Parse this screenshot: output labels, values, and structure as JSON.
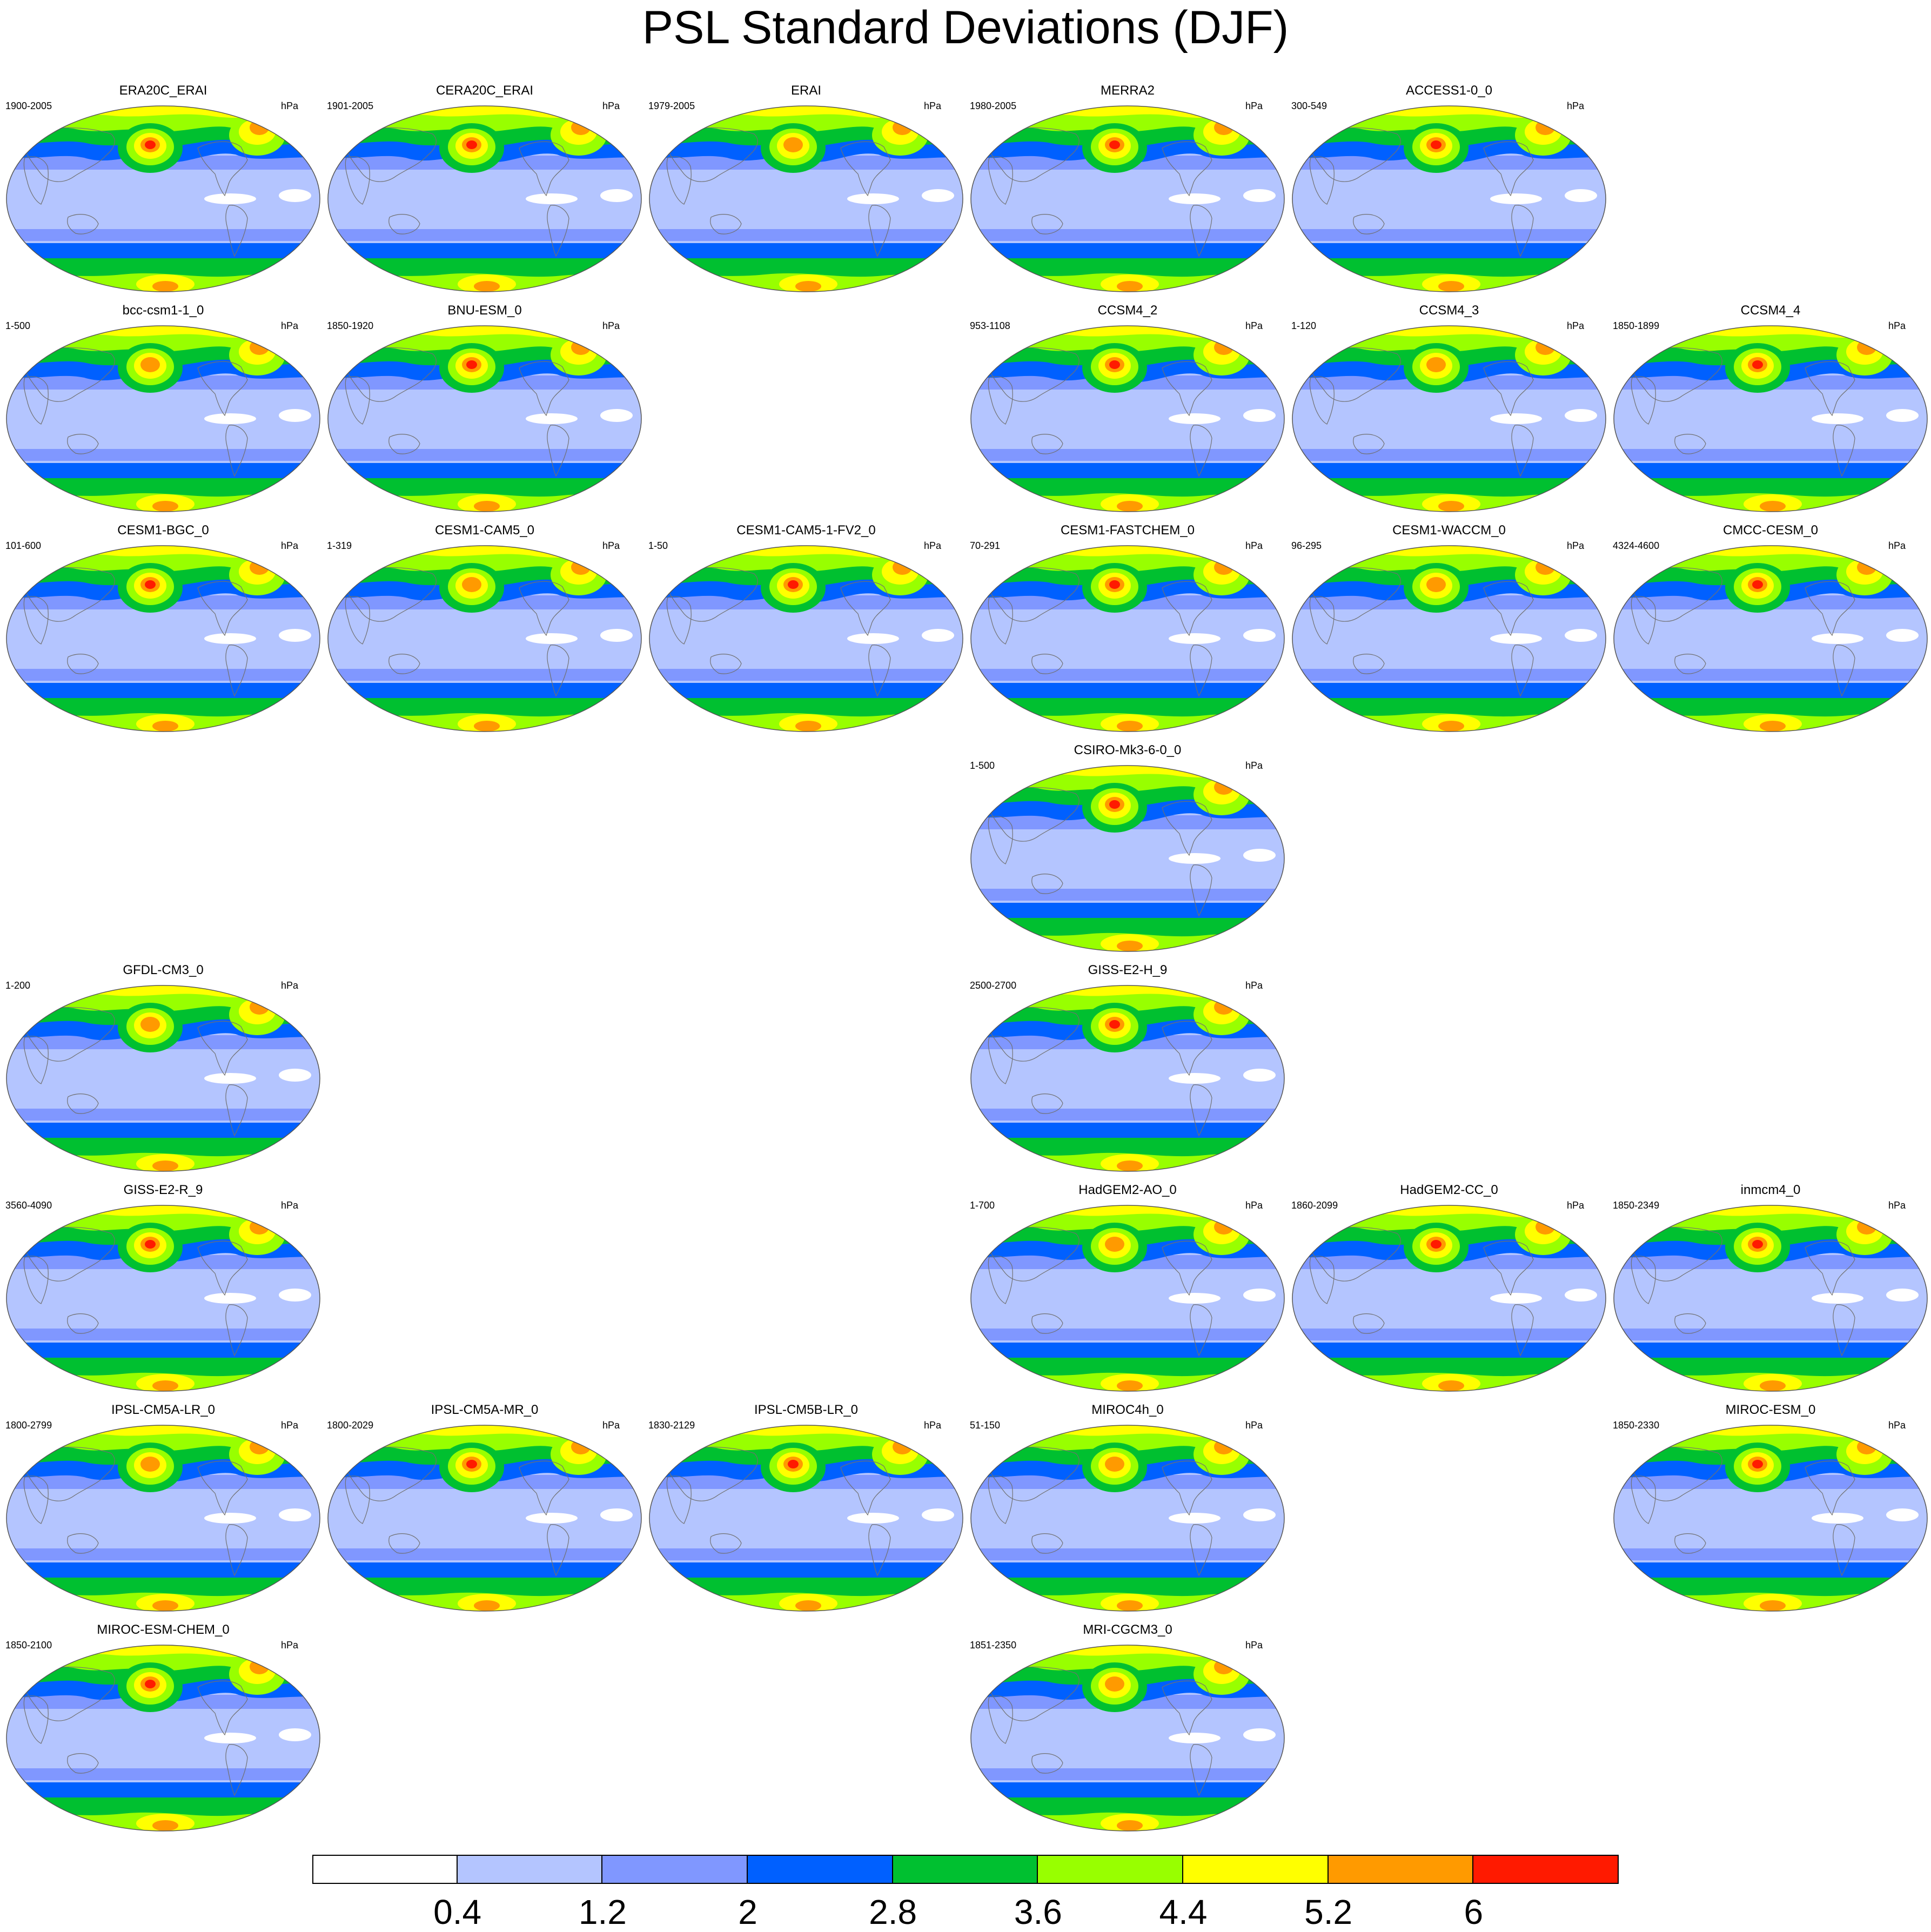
{
  "title": "PSL Standard Deviations (DJF)",
  "units": "hPa",
  "colorbar": {
    "colors": [
      "#ffffff",
      "#b4c5ff",
      "#8097ff",
      "#0060ff",
      "#00c030",
      "#98ff00",
      "#ffff00",
      "#ff9a00",
      "#ff1a00"
    ],
    "labels": [
      "0.4",
      "1.2",
      "2",
      "2.8",
      "3.6",
      "4.4",
      "5.2",
      "6"
    ]
  },
  "panels": [
    {
      "name": "ERA20C_ERAI",
      "years": "1900-2005",
      "row": 0,
      "col": 0
    },
    {
      "name": "CERA20C_ERAI",
      "years": "1901-2005",
      "row": 0,
      "col": 1
    },
    {
      "name": "ERAI",
      "years": "1979-2005",
      "row": 0,
      "col": 2
    },
    {
      "name": "MERRA2",
      "years": "1980-2005",
      "row": 0,
      "col": 3
    },
    {
      "name": "ACCESS1-0_0",
      "years": "300-549",
      "row": 0,
      "col": 4
    },
    {
      "name": "bcc-csm1-1_0",
      "years": "1-500",
      "row": 1,
      "col": 0
    },
    {
      "name": "BNU-ESM_0",
      "years": "1850-1920",
      "row": 1,
      "col": 1
    },
    {
      "name": "CCSM4_2",
      "years": "953-1108",
      "row": 1,
      "col": 3
    },
    {
      "name": "CCSM4_3",
      "years": "1-120",
      "row": 1,
      "col": 4
    },
    {
      "name": "CCSM4_4",
      "years": "1850-1899",
      "row": 1,
      "col": 5
    },
    {
      "name": "CESM1-BGC_0",
      "years": "101-600",
      "row": 2,
      "col": 0
    },
    {
      "name": "CESM1-CAM5_0",
      "years": "1-319",
      "row": 2,
      "col": 1
    },
    {
      "name": "CESM1-CAM5-1-FV2_0",
      "years": "1-50",
      "row": 2,
      "col": 2
    },
    {
      "name": "CESM1-FASTCHEM_0",
      "years": "70-291",
      "row": 2,
      "col": 3
    },
    {
      "name": "CESM1-WACCM_0",
      "years": "96-295",
      "row": 2,
      "col": 4
    },
    {
      "name": "CMCC-CESM_0",
      "years": "4324-4600",
      "row": 2,
      "col": 5
    },
    {
      "name": "CSIRO-Mk3-6-0_0",
      "years": "1-500",
      "row": 3,
      "col": 3
    },
    {
      "name": "GFDL-CM3_0",
      "years": "1-200",
      "row": 4,
      "col": 0
    },
    {
      "name": "GISS-E2-H_9",
      "years": "2500-2700",
      "row": 4,
      "col": 3
    },
    {
      "name": "GISS-E2-R_9",
      "years": "3560-4090",
      "row": 5,
      "col": 0
    },
    {
      "name": "HadGEM2-AO_0",
      "years": "1-700",
      "row": 5,
      "col": 3
    },
    {
      "name": "HadGEM2-CC_0",
      "years": "1860-2099",
      "row": 5,
      "col": 4
    },
    {
      "name": "inmcm4_0",
      "years": "1850-2349",
      "row": 5,
      "col": 5
    },
    {
      "name": "IPSL-CM5A-LR_0",
      "years": "1800-2799",
      "row": 6,
      "col": 0
    },
    {
      "name": "IPSL-CM5A-MR_0",
      "years": "1800-2029",
      "row": 6,
      "col": 1
    },
    {
      "name": "IPSL-CM5B-LR_0",
      "years": "1830-2129",
      "row": 6,
      "col": 2
    },
    {
      "name": "MIROC4h_0",
      "years": "51-150",
      "row": 6,
      "col": 3
    },
    {
      "name": "MIROC-ESM_0",
      "years": "1850-2330",
      "row": 6,
      "col": 5
    },
    {
      "name": "MIROC-ESM-CHEM_0",
      "years": "1850-2100",
      "row": 7,
      "col": 0
    },
    {
      "name": "MRI-CGCM3_0",
      "years": "1851-2350",
      "row": 7,
      "col": 3
    }
  ]
}
